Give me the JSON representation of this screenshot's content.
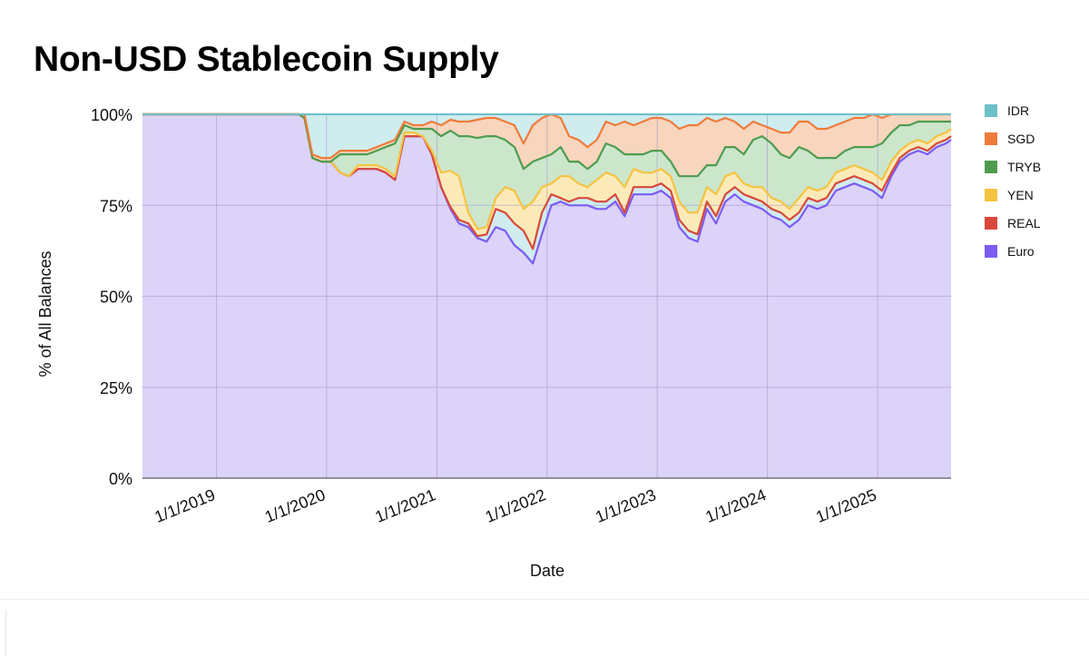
{
  "chart_data": {
    "type": "area",
    "stacked": true,
    "normalized": true,
    "title": "Non-USD Stablecoin Supply",
    "xlabel": "Date",
    "ylabel": "% of All Balances",
    "ylim": [
      0,
      100
    ],
    "y_ticks": [
      "0%",
      "25%",
      "50%",
      "75%",
      "100%"
    ],
    "x_ticks": [
      "1/1/2019",
      "1/1/2020",
      "1/1/2021",
      "1/1/2022",
      "1/1/2023",
      "1/1/2024",
      "1/1/2025"
    ],
    "x_range": [
      "2018-05-01",
      "2025-09-01"
    ],
    "grid": true,
    "legend_position": "right",
    "legend_order": [
      "IDR",
      "SGD",
      "TRYB",
      "YEN",
      "REAL",
      "Euro"
    ],
    "colors": {
      "Euro": "#7c5cf2",
      "REAL": "#d9483b",
      "YEN": "#f5c342",
      "TRYB": "#4e9c4f",
      "SGD": "#ef7b3a",
      "IDR": "#6cc0c9"
    },
    "fill_colors": {
      "Euro": "#dcd3f8",
      "YEN": "#fbeab8",
      "TRYB": "#cce6cc",
      "SGD": "#f8d5bd",
      "IDR": "#cfecef"
    },
    "x": [
      "2018-05-01",
      "2019-10-01",
      "2019-10-20",
      "2019-11-15",
      "2019-12-15",
      "2020-01-15",
      "2020-02-15",
      "2020-03-15",
      "2020-04-15",
      "2020-05-15",
      "2020-06-15",
      "2020-07-15",
      "2020-08-15",
      "2020-09-15",
      "2020-10-15",
      "2020-11-15",
      "2020-12-15",
      "2021-01-15",
      "2021-02-15",
      "2021-03-15",
      "2021-04-15",
      "2021-05-15",
      "2021-06-15",
      "2021-07-15",
      "2021-08-15",
      "2021-09-15",
      "2021-10-15",
      "2021-11-15",
      "2021-12-15",
      "2022-01-15",
      "2022-02-15",
      "2022-03-15",
      "2022-04-15",
      "2022-05-15",
      "2022-06-15",
      "2022-07-15",
      "2022-08-15",
      "2022-09-15",
      "2022-10-15",
      "2022-11-15",
      "2022-12-15",
      "2023-01-15",
      "2023-02-15",
      "2023-03-15",
      "2023-04-15",
      "2023-05-15",
      "2023-06-15",
      "2023-07-15",
      "2023-08-15",
      "2023-09-15",
      "2023-10-15",
      "2023-11-15",
      "2023-12-15",
      "2024-01-15",
      "2024-02-15",
      "2024-03-15",
      "2024-04-15",
      "2024-05-15",
      "2024-06-15",
      "2024-07-15",
      "2024-08-15",
      "2024-09-15",
      "2024-10-15",
      "2024-11-15",
      "2024-12-15",
      "2025-01-15",
      "2025-02-15",
      "2025-03-15",
      "2025-04-15",
      "2025-05-15",
      "2025-06-15",
      "2025-07-15",
      "2025-08-15",
      "2025-09-01"
    ],
    "series": [
      {
        "name": "Euro",
        "values": [
          100,
          100,
          99,
          88,
          87,
          87,
          84,
          83,
          85,
          85,
          85,
          84,
          82,
          94,
          94,
          94,
          89,
          80,
          74,
          70,
          69,
          66,
          65,
          69,
          68,
          64,
          62,
          59,
          67,
          75,
          76,
          75,
          75,
          75,
          74,
          74,
          76,
          72,
          78,
          78,
          78,
          79,
          77,
          69,
          66,
          65,
          74,
          70,
          76,
          78,
          76,
          75,
          74,
          72,
          71,
          69,
          71,
          75,
          74,
          75,
          79,
          80,
          81,
          80,
          79,
          77,
          83,
          87,
          89,
          90,
          89,
          91,
          92,
          93
        ]
      },
      {
        "name": "REAL",
        "values": [
          0,
          0,
          0,
          0,
          0,
          0,
          0,
          0,
          0,
          0,
          0,
          0,
          0,
          0,
          0,
          0,
          0,
          0,
          0.5,
          1,
          1,
          0.5,
          2,
          5,
          5,
          6,
          6,
          4,
          6,
          3,
          1,
          1,
          2,
          2,
          2,
          2,
          2,
          1,
          2,
          2,
          2,
          2,
          2,
          2,
          2,
          2,
          2,
          2,
          2,
          2,
          2,
          2,
          2,
          2,
          2,
          2,
          2,
          2,
          2,
          2,
          2,
          2,
          2,
          2,
          2,
          2,
          1,
          1,
          1,
          1,
          1,
          1,
          1,
          1
        ]
      },
      {
        "name": "YEN",
        "values": [
          0,
          0,
          0,
          0,
          0,
          0,
          0,
          0,
          1,
          1,
          1,
          1,
          1,
          1,
          1,
          0,
          1,
          4,
          10,
          12,
          3,
          2,
          2,
          3,
          7,
          9,
          6,
          13,
          7,
          3,
          6,
          7,
          4,
          3,
          6,
          8,
          5,
          7,
          5,
          4,
          4,
          4,
          4,
          5,
          5,
          6,
          4,
          6,
          5,
          4,
          3,
          3,
          4,
          3,
          3,
          3,
          4,
          3,
          3,
          3,
          3,
          3,
          3,
          3,
          3,
          3,
          3,
          2,
          2,
          2,
          2,
          2,
          2,
          2
        ]
      },
      {
        "name": "TRYB",
        "values": [
          0,
          0,
          0,
          0,
          0,
          0,
          5,
          6,
          3,
          3,
          4,
          6,
          9,
          2,
          1,
          2,
          6,
          10,
          11,
          11,
          21,
          25,
          25,
          17,
          13,
          12,
          11,
          11,
          8,
          8,
          8,
          4,
          6,
          5,
          5,
          8,
          8,
          9,
          4,
          5,
          6,
          5,
          4,
          7,
          10,
          10,
          6,
          8,
          8,
          7,
          8,
          13,
          14,
          15,
          13,
          14,
          14,
          10,
          9,
          8,
          4,
          5,
          5,
          6,
          7,
          10,
          8,
          7,
          5,
          5,
          6,
          4,
          3,
          2
        ]
      },
      {
        "name": "SGD",
        "values": [
          0,
          0,
          1,
          1,
          1,
          1,
          1,
          1,
          1,
          1,
          1,
          1,
          1,
          1,
          1,
          1,
          2,
          3,
          3,
          4,
          4,
          5,
          5,
          5,
          5,
          6,
          7,
          10,
          11,
          11,
          8,
          7,
          6,
          6,
          6,
          6,
          6,
          9,
          8,
          9,
          9,
          9,
          11,
          13,
          14,
          14,
          13,
          12,
          8,
          7,
          7,
          5,
          3,
          4,
          6,
          7,
          7,
          8,
          8,
          8,
          9,
          8,
          8,
          8,
          9,
          7,
          7,
          5,
          4,
          3,
          3,
          3,
          3,
          3.5
        ]
      },
      {
        "name": "IDR",
        "values": [
          0,
          0,
          0,
          11,
          12,
          12,
          10,
          10,
          10,
          10,
          9,
          8,
          7,
          2,
          3,
          3,
          2,
          3,
          1.5,
          2,
          2,
          1.5,
          1,
          1,
          2,
          3,
          8,
          3,
          1,
          0,
          1,
          6,
          7,
          9,
          7,
          2,
          3,
          2,
          3,
          2,
          1,
          1,
          2,
          4,
          3,
          3,
          1,
          2,
          1,
          2,
          4,
          2,
          3,
          4,
          5,
          5,
          2,
          2,
          4,
          4,
          3,
          2,
          1,
          1,
          0,
          1,
          1,
          1,
          1,
          1,
          1,
          1,
          1,
          0
        ]
      }
    ]
  }
}
